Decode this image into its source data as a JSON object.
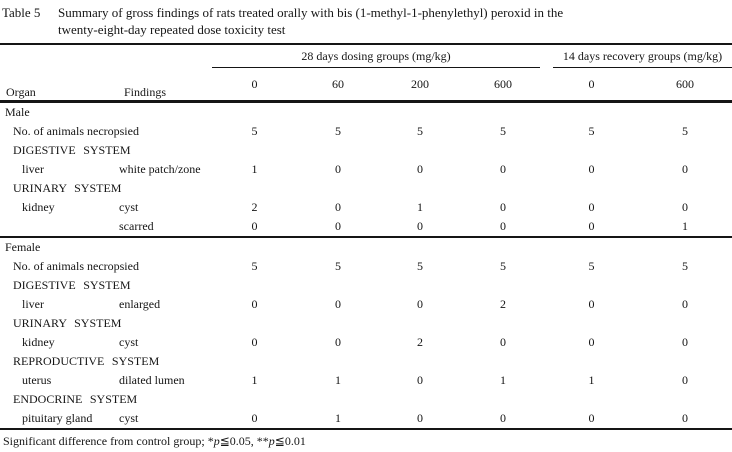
{
  "title": {
    "label": "Table 5",
    "lines": [
      "Summary of gross findings of rats treated orally with bis (1-methyl-1-phenylethyl) peroxid in the",
      "twenty-eight-day repeated dose toxicity test"
    ]
  },
  "table": {
    "col_headers": {
      "organ": "Organ",
      "findings": "Findings"
    },
    "groups": [
      {
        "label": "28 days dosing groups (mg/kg)",
        "doses": [
          "0",
          "60",
          "200",
          "600"
        ]
      },
      {
        "label": "14 days recovery groups (mg/kg)",
        "doses": [
          "0",
          "600"
        ]
      }
    ],
    "rows": [
      {
        "organ": "Male",
        "indent": 0,
        "system": false,
        "divider": false,
        "findings": "",
        "values": [
          "",
          "",
          "",
          "",
          "",
          ""
        ]
      },
      {
        "organ": "No. of animals necropsied",
        "indent": 1,
        "system": false,
        "divider": false,
        "findings": "",
        "values": [
          "5",
          "5",
          "5",
          "5",
          "5",
          "5"
        ]
      },
      {
        "organ": "DIGESTIVE SYSTEM",
        "indent": 1,
        "system": true,
        "divider": false,
        "findings": "",
        "values": [
          "",
          "",
          "",
          "",
          "",
          ""
        ]
      },
      {
        "organ": "liver",
        "indent": 2,
        "system": false,
        "divider": false,
        "findings": "white patch/zone",
        "values": [
          "1",
          "0",
          "0",
          "0",
          "0",
          "0"
        ]
      },
      {
        "organ": "URINARY SYSTEM",
        "indent": 1,
        "system": true,
        "divider": false,
        "findings": "",
        "values": [
          "",
          "",
          "",
          "",
          "",
          ""
        ]
      },
      {
        "organ": "kidney",
        "indent": 2,
        "system": false,
        "divider": false,
        "findings": "cyst",
        "values": [
          "2",
          "0",
          "1",
          "0",
          "0",
          "0"
        ]
      },
      {
        "organ": "",
        "indent": 2,
        "system": false,
        "divider": false,
        "findings": "scarred",
        "values": [
          "0",
          "0",
          "0",
          "0",
          "0",
          "1"
        ]
      },
      {
        "organ": "Female",
        "indent": 0,
        "system": false,
        "divider": true,
        "findings": "",
        "values": [
          "",
          "",
          "",
          "",
          "",
          ""
        ]
      },
      {
        "organ": "No. of animals necropsied",
        "indent": 1,
        "system": false,
        "divider": false,
        "findings": "",
        "values": [
          "5",
          "5",
          "5",
          "5",
          "5",
          "5"
        ]
      },
      {
        "organ": "DIGESTIVE SYSTEM",
        "indent": 1,
        "system": true,
        "divider": false,
        "findings": "",
        "values": [
          "",
          "",
          "",
          "",
          "",
          ""
        ]
      },
      {
        "organ": "liver",
        "indent": 2,
        "system": false,
        "divider": false,
        "findings": "enlarged",
        "values": [
          "0",
          "0",
          "0",
          "2",
          "0",
          "0"
        ]
      },
      {
        "organ": "URINARY SYSTEM",
        "indent": 1,
        "system": true,
        "divider": false,
        "findings": "",
        "values": [
          "",
          "",
          "",
          "",
          "",
          ""
        ]
      },
      {
        "organ": "kidney",
        "indent": 2,
        "system": false,
        "divider": false,
        "findings": "cyst",
        "values": [
          "0",
          "0",
          "2",
          "0",
          "0",
          "0"
        ]
      },
      {
        "organ": "REPRODUCTIVE SYSTEM",
        "indent": 1,
        "system": true,
        "divider": false,
        "findings": "",
        "values": [
          "",
          "",
          "",
          "",
          "",
          ""
        ]
      },
      {
        "organ": "uterus",
        "indent": 2,
        "system": false,
        "divider": false,
        "findings": "dilated lumen",
        "values": [
          "1",
          "1",
          "0",
          "1",
          "1",
          "0"
        ]
      },
      {
        "organ": "ENDOCRINE SYSTEM",
        "indent": 1,
        "system": true,
        "divider": false,
        "findings": "",
        "values": [
          "",
          "",
          "",
          "",
          "",
          ""
        ]
      },
      {
        "organ": "pituitary gland",
        "indent": 2,
        "system": false,
        "divider": false,
        "findings": "cyst",
        "values": [
          "0",
          "1",
          "0",
          "0",
          "0",
          "0"
        ]
      }
    ]
  },
  "footnote": {
    "segments": [
      {
        "t": "Significant difference from control group; *",
        "italic": false
      },
      {
        "t": "p",
        "italic": true
      },
      {
        "t": "≦0.05, **",
        "italic": false
      },
      {
        "t": "p",
        "italic": true
      },
      {
        "t": "≦0.01",
        "italic": false
      }
    ]
  }
}
